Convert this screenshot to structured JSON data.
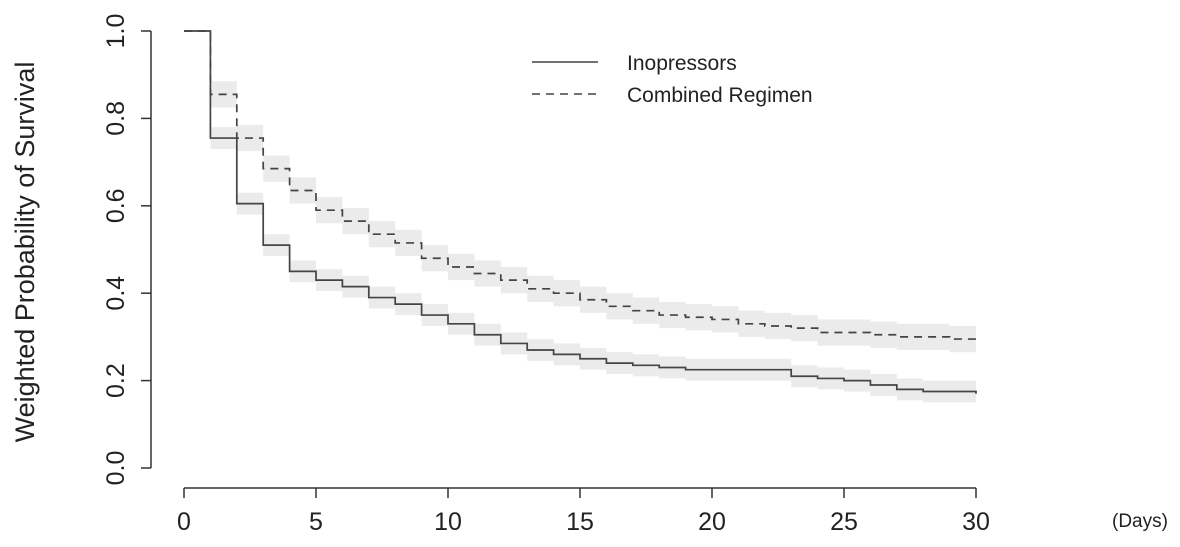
{
  "chart_data": {
    "type": "line",
    "title": "",
    "xlabel": "",
    "x_unit_label": "(Days)",
    "ylabel": "Weighted Probability of Survival",
    "xlim": [
      0,
      30
    ],
    "ylim": [
      0,
      1
    ],
    "x_ticks": [
      "0",
      "5",
      "10",
      "15",
      "20",
      "25",
      "30"
    ],
    "y_ticks": [
      "0.0",
      "0.2",
      "0.4",
      "0.6",
      "0.8",
      "1.0"
    ],
    "grid": false,
    "legend_position": "top-center",
    "step": true,
    "series": [
      {
        "name": "Inopressors",
        "line_style": "solid",
        "x": [
          0,
          1,
          2,
          3,
          4,
          5,
          6,
          7,
          8,
          9,
          10,
          11,
          12,
          13,
          14,
          15,
          16,
          17,
          18,
          19,
          20,
          21,
          22,
          23,
          24,
          25,
          26,
          27,
          28,
          29,
          30
        ],
        "y": [
          1.0,
          0.755,
          0.605,
          0.51,
          0.45,
          0.43,
          0.415,
          0.39,
          0.375,
          0.35,
          0.33,
          0.305,
          0.285,
          0.27,
          0.26,
          0.25,
          0.24,
          0.235,
          0.23,
          0.225,
          0.225,
          0.225,
          0.225,
          0.21,
          0.205,
          0.2,
          0.19,
          0.18,
          0.175,
          0.175,
          0.17
        ],
        "ci_halfwidth": 0.025
      },
      {
        "name": "Combined Regimen",
        "line_style": "dashed",
        "x": [
          0,
          1,
          2,
          3,
          4,
          5,
          6,
          7,
          8,
          9,
          10,
          11,
          12,
          13,
          14,
          15,
          16,
          17,
          18,
          19,
          20,
          21,
          22,
          23,
          24,
          25,
          26,
          27,
          28,
          29,
          30
        ],
        "y": [
          1.0,
          0.855,
          0.755,
          0.685,
          0.635,
          0.59,
          0.565,
          0.535,
          0.515,
          0.48,
          0.46,
          0.445,
          0.43,
          0.41,
          0.4,
          0.385,
          0.37,
          0.36,
          0.35,
          0.345,
          0.34,
          0.33,
          0.325,
          0.32,
          0.31,
          0.31,
          0.305,
          0.3,
          0.3,
          0.295,
          0.29
        ],
        "ci_halfwidth": 0.03
      }
    ]
  },
  "colors": {
    "line": "#444444",
    "axis": "#333333",
    "ci_band": "#e4e4e4"
  }
}
